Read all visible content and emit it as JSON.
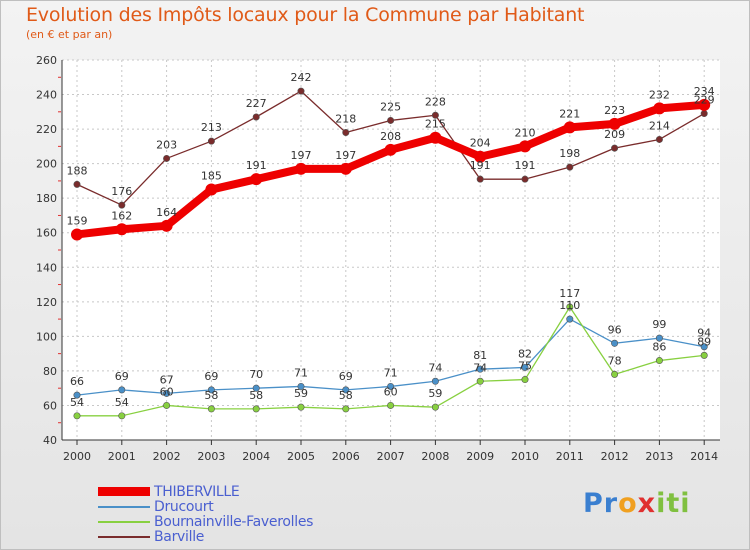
{
  "header": {
    "title": "Evolution des Impôts locaux pour la Commune par Habitant",
    "subtitle": "(en € et par an)"
  },
  "chart_data": {
    "type": "line",
    "title": "Evolution des Impôts locaux pour la Commune par Habitant",
    "subtitle": "(en € et par an)",
    "xlabel": "",
    "ylabel": "",
    "ylim": [
      40,
      260
    ],
    "yticks": [
      40,
      60,
      80,
      100,
      120,
      140,
      160,
      180,
      200,
      220,
      240,
      260
    ],
    "grid": true,
    "legend_position": "bottom-left",
    "categories": [
      "2000",
      "2001",
      "2002",
      "2003",
      "2004",
      "2005",
      "2006",
      "2007",
      "2008",
      "2009",
      "2010",
      "2011",
      "2012",
      "2013",
      "2014"
    ],
    "series": [
      {
        "name": "THIBERVILLE",
        "color": "#ee0000",
        "values": [
          159,
          162,
          164,
          185,
          191,
          197,
          197,
          208,
          215,
          204,
          210,
          221,
          223,
          232,
          234
        ]
      },
      {
        "name": "Drucourt",
        "color": "#4a90c8",
        "values": [
          66,
          69,
          67,
          69,
          70,
          71,
          69,
          71,
          74,
          81,
          82,
          110,
          96,
          99,
          94
        ]
      },
      {
        "name": "Bournainville-Faverolles",
        "color": "#88d040",
        "values": [
          54,
          54,
          60,
          58,
          58,
          59,
          58,
          60,
          59,
          74,
          75,
          117,
          78,
          86,
          89
        ]
      },
      {
        "name": "Barville",
        "color": "#7a2c2c",
        "values": [
          188,
          176,
          203,
          213,
          227,
          242,
          218,
          225,
          228,
          191,
          191,
          198,
          209,
          214,
          229
        ]
      }
    ]
  },
  "logo": {
    "parts": [
      "Pr",
      "o",
      "x",
      "iti"
    ]
  }
}
